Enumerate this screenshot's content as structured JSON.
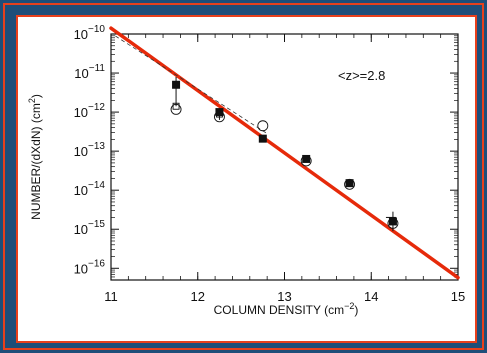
{
  "colors": {
    "background": "#1f4e79",
    "outer_border": "#e8401c",
    "panel": "#ffffff",
    "fit_line": "#e62a0a",
    "ink": "#111111"
  },
  "chart_data": {
    "type": "scatter",
    "xlabel": "COLUMN DENSITY (cm",
    "xlabel_sup": "−2",
    "xlabel_end": ")",
    "ylabel": "NUMBER/(dXdN) (cm",
    "ylabel_sup": "2",
    "ylabel_end": ")",
    "y_scale": "log",
    "xlim": [
      11,
      15
    ],
    "ylim_log10": [
      -16.3,
      -10
    ],
    "x_ticks": [
      11,
      12,
      13,
      14,
      15
    ],
    "x_tick_labels": [
      "11",
      "12",
      "13",
      "14",
      "15"
    ],
    "y_ticks_log10": [
      -10,
      -11,
      -12,
      -13,
      -14,
      -15,
      -16
    ],
    "y_tick_base": "10",
    "y_tick_exps": [
      "−10",
      "−11",
      "−12",
      "−13",
      "−14",
      "−15",
      "−16"
    ],
    "annotation": "<z>=2.8",
    "series": [
      {
        "marker": "filled-square",
        "points": [
          {
            "x": 11.75,
            "log10y": -11.3,
            "err_lo": -11.85,
            "err_hi": -11.1
          },
          {
            "x": 12.25,
            "log10y": -12.0,
            "err_lo": -12.2,
            "err_hi": -11.9
          },
          {
            "x": 12.75,
            "log10y": -12.68
          },
          {
            "x": 13.25,
            "log10y": -13.2
          },
          {
            "x": 13.75,
            "log10y": -13.82
          },
          {
            "x": 14.25,
            "log10y": -14.8,
            "err_lo": -15.05,
            "err_hi": -14.55
          }
        ]
      },
      {
        "marker": "open-circle",
        "points": [
          {
            "x": 11.75,
            "log10y": -11.93
          },
          {
            "x": 12.25,
            "log10y": -12.12
          },
          {
            "x": 12.75,
            "log10y": -12.35
          },
          {
            "x": 13.25,
            "log10y": -13.25
          },
          {
            "x": 13.75,
            "log10y": -13.85
          },
          {
            "x": 14.25,
            "log10y": -14.85
          }
        ]
      },
      {
        "marker": "open-square",
        "points": [
          {
            "x": 11.75,
            "log10y": -11.85
          },
          {
            "x": 12.25,
            "log10y": -12.05
          }
        ]
      }
    ],
    "lines": [
      {
        "style": "solid-thick",
        "from": [
          11,
          -9.85
        ],
        "to": [
          15,
          -16.24
        ]
      },
      {
        "style": "dashed-thin",
        "from": [
          11.05,
          -10.05
        ],
        "to": [
          12.8,
          -12.55
        ]
      }
    ]
  }
}
